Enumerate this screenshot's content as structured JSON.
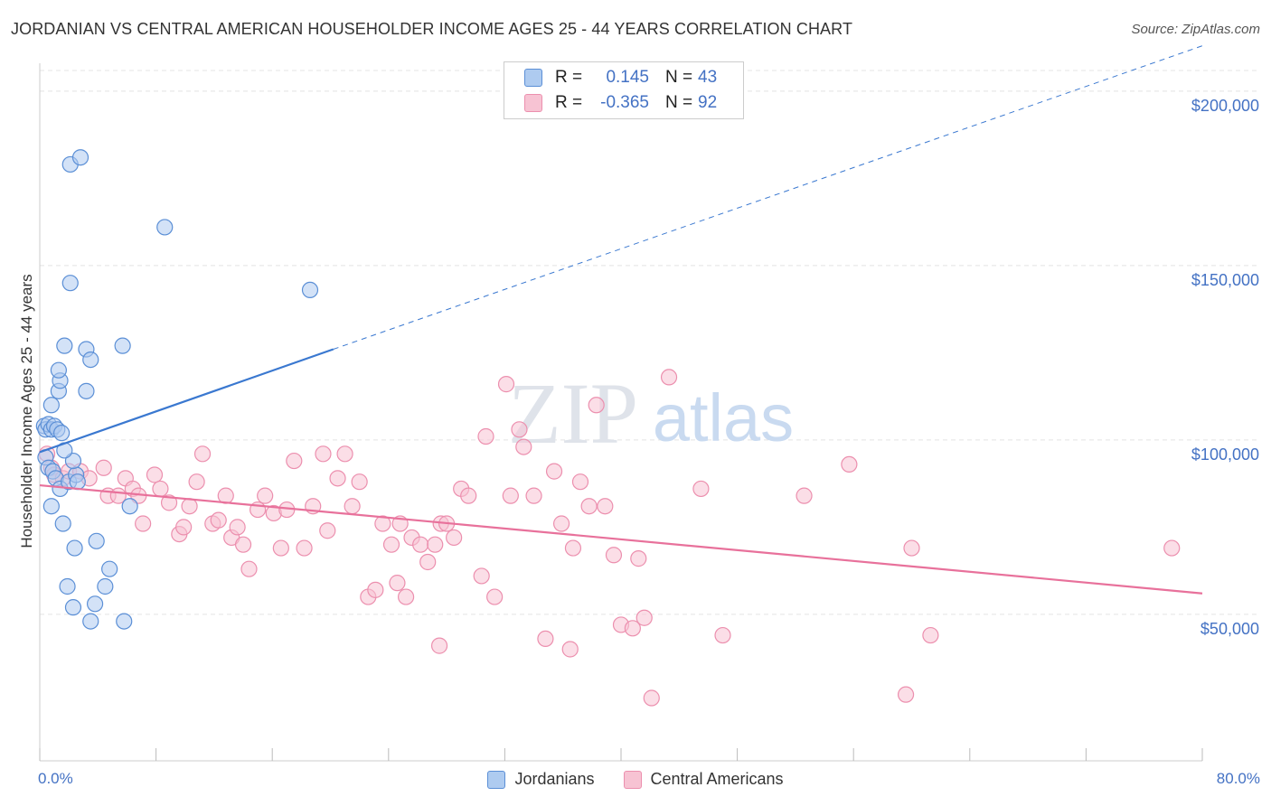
{
  "header": {
    "title": "JORDANIAN VS CENTRAL AMERICAN HOUSEHOLDER INCOME AGES 25 - 44 YEARS CORRELATION CHART",
    "source": "Source: ZipAtlas.com"
  },
  "watermark": {
    "zip": "ZIP",
    "atlas": "atlas"
  },
  "legend": {
    "rows": [
      {
        "r_label": "R =",
        "r_value": "0.145",
        "n_label": "N =",
        "n_value": "43"
      },
      {
        "r_label": "R =",
        "r_value": "-0.365",
        "n_label": "N =",
        "n_value": "92"
      }
    ]
  },
  "bottom_legend": {
    "series1": "Jordanians",
    "series2": "Central Americans"
  },
  "colors": {
    "jordanian_fill": "#aecbf0",
    "jordanian_stroke": "#5b8fd6",
    "jordanian_line": "#3a78d0",
    "central_fill": "#f7c3d3",
    "central_stroke": "#ec8fae",
    "central_line": "#e8719b",
    "tick_label": "#4472c4",
    "grid": "#e4e4e4"
  },
  "chart_data": {
    "type": "scatter",
    "title": "JORDANIAN VS CENTRAL AMERICAN HOUSEHOLDER INCOME AGES 25 - 44 YEARS CORRELATION CHART",
    "xlabel": "",
    "ylabel": "Householder Income Ages 25 - 44 years",
    "x_tick_labels": [
      "0.0%",
      "80.0%"
    ],
    "xlim": [
      0,
      80
    ],
    "ylim": [
      8000,
      208000
    ],
    "y_ticks": [
      50000,
      100000,
      150000,
      200000
    ],
    "y_tick_labels": [
      "$50,000",
      "$100,000",
      "$150,000",
      "$200,000"
    ],
    "series": [
      {
        "name": "Jordanians",
        "R": 0.145,
        "N": 43,
        "trend": {
          "x0": 0,
          "y0": 96500,
          "x1": 20.2,
          "y1": 126000,
          "dashed_to_x": 80,
          "dashed_to_y": 213000
        },
        "points": [
          [
            0.3,
            104000
          ],
          [
            0.4,
            103000
          ],
          [
            0.6,
            104500
          ],
          [
            0.8,
            103000
          ],
          [
            1.0,
            104000
          ],
          [
            1.2,
            103000
          ],
          [
            1.5,
            102000
          ],
          [
            0.4,
            95000
          ],
          [
            0.6,
            92000
          ],
          [
            0.9,
            91000
          ],
          [
            1.1,
            89000
          ],
          [
            1.4,
            86000
          ],
          [
            2.0,
            88000
          ],
          [
            2.5,
            90000
          ],
          [
            2.6,
            88000
          ],
          [
            2.3,
            94000
          ],
          [
            1.7,
            97000
          ],
          [
            0.8,
            110000
          ],
          [
            1.3,
            114000
          ],
          [
            1.4,
            117000
          ],
          [
            1.3,
            120000
          ],
          [
            1.7,
            127000
          ],
          [
            3.2,
            126000
          ],
          [
            3.5,
            123000
          ],
          [
            5.7,
            127000
          ],
          [
            3.2,
            114000
          ],
          [
            2.1,
            145000
          ],
          [
            2.1,
            179000
          ],
          [
            2.8,
            181000
          ],
          [
            8.6,
            161000
          ],
          [
            18.6,
            143000
          ],
          [
            0.8,
            81000
          ],
          [
            1.6,
            76000
          ],
          [
            2.4,
            69000
          ],
          [
            3.9,
            71000
          ],
          [
            1.9,
            58000
          ],
          [
            4.8,
            63000
          ],
          [
            4.5,
            58000
          ],
          [
            2.3,
            52000
          ],
          [
            3.8,
            53000
          ],
          [
            3.5,
            48000
          ],
          [
            5.8,
            48000
          ],
          [
            6.2,
            81000
          ]
        ]
      },
      {
        "name": "Central Americans",
        "R": -0.365,
        "N": 92,
        "trend": {
          "x0": 0,
          "y0": 87000,
          "x1": 80,
          "y1": 56000
        },
        "points": [
          [
            0.5,
            96000
          ],
          [
            0.8,
            92000
          ],
          [
            1.0,
            90000
          ],
          [
            1.6,
            89000
          ],
          [
            2.0,
            91000
          ],
          [
            2.8,
            91000
          ],
          [
            3.4,
            89000
          ],
          [
            4.4,
            92000
          ],
          [
            4.7,
            84000
          ],
          [
            5.4,
            84000
          ],
          [
            5.9,
            89000
          ],
          [
            6.4,
            86000
          ],
          [
            6.8,
            84000
          ],
          [
            7.1,
            76000
          ],
          [
            7.9,
            90000
          ],
          [
            8.3,
            86000
          ],
          [
            8.9,
            82000
          ],
          [
            9.6,
            73000
          ],
          [
            9.9,
            75000
          ],
          [
            10.3,
            81000
          ],
          [
            10.8,
            88000
          ],
          [
            11.2,
            96000
          ],
          [
            11.9,
            76000
          ],
          [
            12.3,
            77000
          ],
          [
            12.8,
            84000
          ],
          [
            13.2,
            72000
          ],
          [
            13.6,
            75000
          ],
          [
            14.0,
            70000
          ],
          [
            14.4,
            63000
          ],
          [
            15.0,
            80000
          ],
          [
            15.5,
            84000
          ],
          [
            16.1,
            79000
          ],
          [
            16.6,
            69000
          ],
          [
            17.0,
            80000
          ],
          [
            17.5,
            94000
          ],
          [
            18.2,
            69000
          ],
          [
            18.8,
            81000
          ],
          [
            19.5,
            96000
          ],
          [
            19.8,
            74000
          ],
          [
            20.5,
            89000
          ],
          [
            21.0,
            96000
          ],
          [
            21.5,
            81000
          ],
          [
            22.0,
            88000
          ],
          [
            22.6,
            55000
          ],
          [
            23.1,
            57000
          ],
          [
            23.6,
            76000
          ],
          [
            24.2,
            70000
          ],
          [
            24.8,
            76000
          ],
          [
            25.2,
            55000
          ],
          [
            25.6,
            72000
          ],
          [
            26.2,
            70000
          ],
          [
            26.7,
            65000
          ],
          [
            27.2,
            70000
          ],
          [
            27.6,
            76000
          ],
          [
            28.0,
            76000
          ],
          [
            28.5,
            72000
          ],
          [
            29.0,
            86000
          ],
          [
            29.5,
            84000
          ],
          [
            30.4,
            61000
          ],
          [
            30.7,
            101000
          ],
          [
            31.3,
            55000
          ],
          [
            32.1,
            116000
          ],
          [
            32.4,
            84000
          ],
          [
            33.0,
            103000
          ],
          [
            33.3,
            98000
          ],
          [
            34.0,
            84000
          ],
          [
            34.8,
            43000
          ],
          [
            35.4,
            91000
          ],
          [
            35.9,
            76000
          ],
          [
            36.7,
            69000
          ],
          [
            37.2,
            88000
          ],
          [
            37.8,
            81000
          ],
          [
            38.3,
            110000
          ],
          [
            38.9,
            81000
          ],
          [
            39.5,
            67000
          ],
          [
            40.0,
            47000
          ],
          [
            40.8,
            46000
          ],
          [
            41.2,
            66000
          ],
          [
            41.6,
            49000
          ],
          [
            43.3,
            118000
          ],
          [
            42.1,
            26000
          ],
          [
            45.5,
            86000
          ],
          [
            47.0,
            44000
          ],
          [
            52.6,
            84000
          ],
          [
            55.7,
            93000
          ],
          [
            59.6,
            27000
          ],
          [
            60.0,
            69000
          ],
          [
            61.3,
            44000
          ],
          [
            77.9,
            69000
          ],
          [
            36.5,
            40000
          ],
          [
            27.5,
            41000
          ],
          [
            24.6,
            59000
          ]
        ]
      }
    ]
  }
}
